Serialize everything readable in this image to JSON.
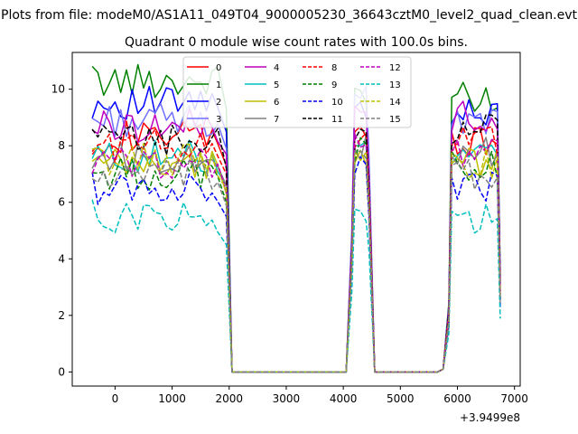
{
  "chart_data": {
    "type": "line",
    "suptitle": "Plots from file: modeM0/AS1A11_049T04_9000005230_36643cztM0_level2_quad_clean.evt",
    "title": "Quadrant 0 module wise count rates with 100.0s bins.",
    "xlabel": "",
    "ylabel": "",
    "x_offset_label": "+3.9499e8",
    "xlim": [
      -750,
      7100
    ],
    "ylim": [
      -0.5,
      11.3
    ],
    "xticks": [
      0,
      1000,
      2000,
      3000,
      4000,
      5000,
      6000,
      7000
    ],
    "yticks": [
      0,
      2,
      4,
      6,
      8,
      10
    ],
    "xtick_labels": [
      "0",
      "1000",
      "2000",
      "3000",
      "4000",
      "5000",
      "6000",
      "7000"
    ],
    "ytick_labels": [
      "0",
      "2",
      "4",
      "6",
      "8",
      "10"
    ],
    "legend": {
      "location": "upper-center",
      "columns": 4
    },
    "segments": [
      {
        "x_start": -400,
        "x_end": 1850
      },
      {
        "x_start": 4200,
        "x_end": 4400
      },
      {
        "x_start": 5900,
        "x_end": 6700
      }
    ],
    "gap_points_x": [
      1950,
      2050,
      2150,
      2250,
      2350,
      2450,
      2550,
      2650,
      2750,
      2850,
      2950,
      3050,
      3150,
      3250,
      3350,
      3450,
      3550,
      3650,
      3750,
      3850,
      3950,
      4050,
      4150,
      4450,
      4550,
      4650,
      4750,
      4850,
      4950,
      5050,
      5150,
      5250,
      5350,
      5450,
      5550,
      5650,
      5750,
      5850
    ],
    "gap_points_y": [
      7.0,
      0.0,
      0.0,
      0.0,
      0.0,
      0.0,
      0.0,
      0.0,
      0.0,
      0.0,
      0.0,
      0.0,
      0.0,
      0.0,
      0.0,
      0.0,
      0.0,
      0.0,
      0.0,
      0.0,
      0.0,
      0.0,
      0.0,
      6.5,
      0.0,
      0.0,
      0.0,
      0.0,
      0.0,
      0.0,
      0.0,
      0.0,
      0.0,
      0.0,
      0.0,
      0.0,
      0.0,
      1.5
    ],
    "series": [
      {
        "name": "0",
        "color": "#ff0000",
        "dash": "solid",
        "base": [
          8.3,
          8.4,
          8.2
        ]
      },
      {
        "name": "1",
        "color": "#008000",
        "dash": "solid",
        "base": [
          10.3,
          9.6,
          9.8
        ]
      },
      {
        "name": "2",
        "color": "#0000ff",
        "dash": "solid",
        "base": [
          9.5,
          9.4,
          9.3
        ]
      },
      {
        "name": "3",
        "color": "#7070ff",
        "dash": "solid",
        "base": [
          8.9,
          10.1,
          9.0
        ]
      },
      {
        "name": "4",
        "color": "#bf00bf",
        "dash": "solid",
        "base": [
          8.7,
          9.2,
          9.0
        ]
      },
      {
        "name": "5",
        "color": "#00bfbf",
        "dash": "solid",
        "base": [
          7.6,
          7.7,
          7.5
        ]
      },
      {
        "name": "6",
        "color": "#bfbf00",
        "dash": "solid",
        "base": [
          7.3,
          7.6,
          7.4
        ]
      },
      {
        "name": "7",
        "color": "#808080",
        "dash": "solid",
        "base": [
          7.6,
          7.9,
          7.8
        ]
      },
      {
        "name": "8",
        "color": "#ff0000",
        "dash": "dashed",
        "base": [
          8.0,
          8.3,
          8.1
        ]
      },
      {
        "name": "9",
        "color": "#008000",
        "dash": "dashed",
        "base": [
          7.0,
          7.8,
          7.3
        ]
      },
      {
        "name": "10",
        "color": "#0000ff",
        "dash": "dashed",
        "base": [
          6.5,
          7.2,
          6.5
        ]
      },
      {
        "name": "11",
        "color": "#000000",
        "dash": "dashed",
        "base": [
          8.2,
          8.6,
          8.5
        ]
      },
      {
        "name": "12",
        "color": "#bf00bf",
        "dash": "dashed",
        "base": [
          7.4,
          8.1,
          7.7
        ]
      },
      {
        "name": "13",
        "color": "#00bfbf",
        "dash": "dashed",
        "base": [
          5.5,
          5.7,
          5.4
        ]
      },
      {
        "name": "14",
        "color": "#bfbf00",
        "dash": "dashed",
        "base": [
          7.5,
          7.9,
          7.4
        ]
      },
      {
        "name": "15",
        "color": "#808080",
        "dash": "dashed",
        "base": [
          6.9,
          7.4,
          7.0
        ]
      }
    ]
  }
}
